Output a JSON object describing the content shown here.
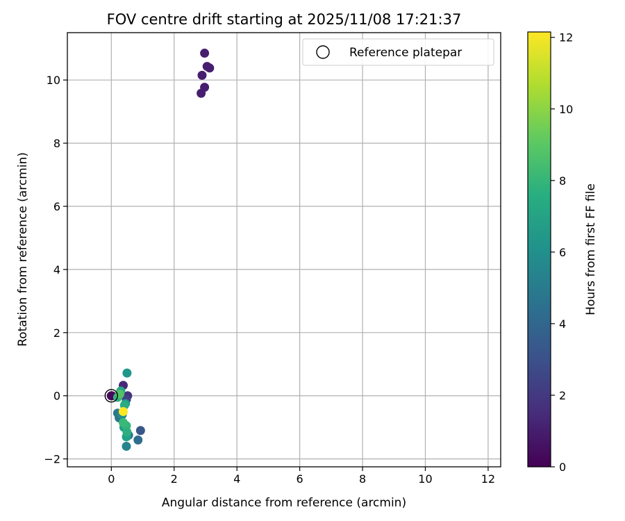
{
  "chart_data": {
    "type": "scatter",
    "title": "FOV centre drift starting at 2025/11/08 17:21:37",
    "xlabel": "Angular distance from reference (arcmin)",
    "ylabel": "Rotation from reference (arcmin)",
    "xlim": [
      -1.4,
      12.4
    ],
    "ylim": [
      -2.25,
      11.5
    ],
    "xticks": [
      0,
      2,
      4,
      6,
      8,
      10,
      12
    ],
    "yticks": [
      -2,
      0,
      2,
      4,
      6,
      8,
      10
    ],
    "grid": true,
    "legend_placement": "top-right",
    "legend": [
      {
        "label": "Reference platepar",
        "marker": "open-circle"
      }
    ],
    "reference_point": {
      "x": 0,
      "y": 0
    },
    "colorbar": {
      "label": "Hours from first FF file",
      "range": [
        0,
        12.15
      ],
      "ticks": [
        0,
        2,
        4,
        6,
        8,
        10,
        12
      ],
      "colormap": "viridis"
    },
    "points": [
      {
        "x": 0.0,
        "y": 0.0,
        "c": 0.1
      },
      {
        "x": 2.97,
        "y": 10.85,
        "c": 1.0
      },
      {
        "x": 3.05,
        "y": 10.43,
        "c": 1.0
      },
      {
        "x": 3.13,
        "y": 10.38,
        "c": 1.0
      },
      {
        "x": 2.89,
        "y": 10.15,
        "c": 1.0
      },
      {
        "x": 2.97,
        "y": 9.77,
        "c": 1.0
      },
      {
        "x": 2.86,
        "y": 9.58,
        "c": 1.0
      },
      {
        "x": 0.02,
        "y": 0.0,
        "c": 0.3
      },
      {
        "x": 0.38,
        "y": 0.33,
        "c": 1.4
      },
      {
        "x": 0.52,
        "y": 0.0,
        "c": 1.8
      },
      {
        "x": 0.48,
        "y": -0.12,
        "c": 2.4
      },
      {
        "x": 0.93,
        "y": -1.1,
        "c": 3.3
      },
      {
        "x": 0.85,
        "y": -1.4,
        "c": 4.3
      },
      {
        "x": 0.55,
        "y": -1.25,
        "c": 4.8
      },
      {
        "x": 0.25,
        "y": -0.7,
        "c": 4.6
      },
      {
        "x": 0.2,
        "y": -0.55,
        "c": 5.0
      },
      {
        "x": 0.48,
        "y": -1.6,
        "c": 5.5
      },
      {
        "x": 0.5,
        "y": 0.72,
        "c": 6.4
      },
      {
        "x": 0.35,
        "y": -0.6,
        "c": 5.9
      },
      {
        "x": 0.45,
        "y": -0.25,
        "c": 6.6
      },
      {
        "x": 0.4,
        "y": -1.0,
        "c": 6.8
      },
      {
        "x": 0.48,
        "y": -1.3,
        "c": 6.9
      },
      {
        "x": 0.3,
        "y": 0.15,
        "c": 7.3
      },
      {
        "x": 0.42,
        "y": -0.3,
        "c": 7.5
      },
      {
        "x": 0.2,
        "y": -0.05,
        "c": 7.8
      },
      {
        "x": 0.48,
        "y": -0.95,
        "c": 8.0
      },
      {
        "x": 0.38,
        "y": -0.85,
        "c": 8.2
      },
      {
        "x": 0.5,
        "y": -1.15,
        "c": 7.6
      },
      {
        "x": 0.27,
        "y": 0.05,
        "c": 8.8
      },
      {
        "x": 0.38,
        "y": -0.5,
        "c": 12.15
      }
    ]
  }
}
